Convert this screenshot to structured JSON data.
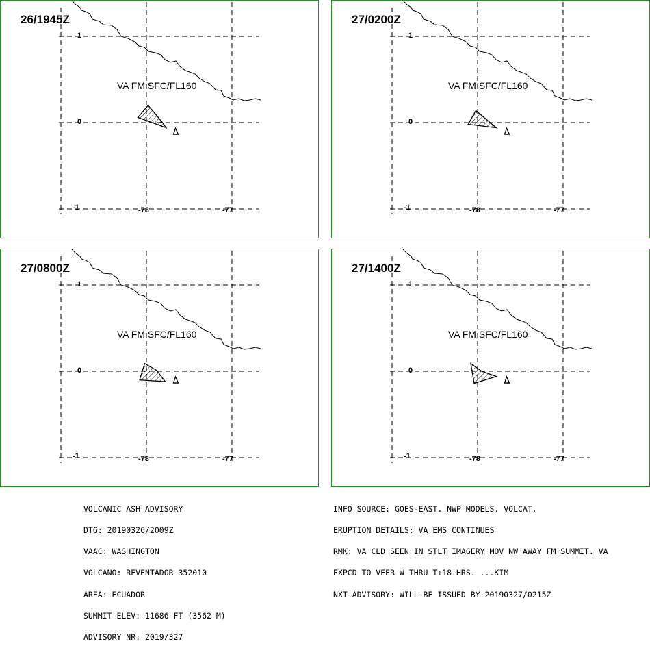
{
  "panels": [
    {
      "time": "26/1945Z",
      "label": "VA FM SFC/FL160",
      "ash_poly": [
        [
          -77.98,
          0.2
        ],
        [
          -77.82,
          0.01
        ],
        [
          -77.77,
          -0.06
        ],
        [
          -78.1,
          0.06
        ]
      ]
    },
    {
      "time": "27/0200Z",
      "label": "VA FM SFC/FL160",
      "ash_poly": [
        [
          -78.02,
          0.14
        ],
        [
          -77.83,
          -0.02
        ],
        [
          -77.78,
          -0.06
        ],
        [
          -78.11,
          -0.02
        ]
      ]
    },
    {
      "time": "27/0800Z",
      "label": "VA FM SFC/FL160",
      "ash_poly": [
        [
          -78.02,
          0.09
        ],
        [
          -77.88,
          0.01
        ],
        [
          -77.78,
          -0.12
        ],
        [
          -78.08,
          -0.1
        ]
      ]
    },
    {
      "time": "27/1400Z",
      "label": "VA FM SFC/FL160",
      "ash_poly": [
        [
          -78.08,
          0.09
        ],
        [
          -77.95,
          0.0
        ],
        [
          -77.78,
          -0.06
        ],
        [
          -78.04,
          -0.14
        ]
      ]
    }
  ],
  "axes": {
    "lat_ticks": [
      "1",
      "0",
      "-1"
    ],
    "lon_ticks": [
      "-78",
      "-77"
    ],
    "lat_values": [
      1,
      0,
      -1
    ],
    "lon_values": [
      -78,
      -77
    ]
  },
  "volcano": {
    "lon": -77.66,
    "lat": -0.08
  },
  "coastline_color": "#000000",
  "border_color": "#2e8b2e",
  "advisory_left": [
    "VOLCANIC ASH ADVISORY",
    "DTG: 20190326/2009Z",
    "VAAC: WASHINGTON",
    "VOLCANO: REVENTADOR 352010",
    "AREA: ECUADOR",
    "SUMMIT ELEV: 11686 FT (3562 M)",
    "ADVISORY NR: 2019/327"
  ],
  "advisory_right": [
    "INFO SOURCE: GOES-EAST. NWP MODELS. VOLCAT.",
    "ERUPTION DETAILS: VA EMS CONTINUES",
    "RMK: VA CLD SEEN IN STLT IMAGERY MOV NW AWAY FM SUMMIT. VA",
    "EXPCD TO VEER W THRU T+18 HRS. ...KIM",
    "NXT ADVISORY: WILL BE ISSUED BY 20190327/0215Z"
  ]
}
